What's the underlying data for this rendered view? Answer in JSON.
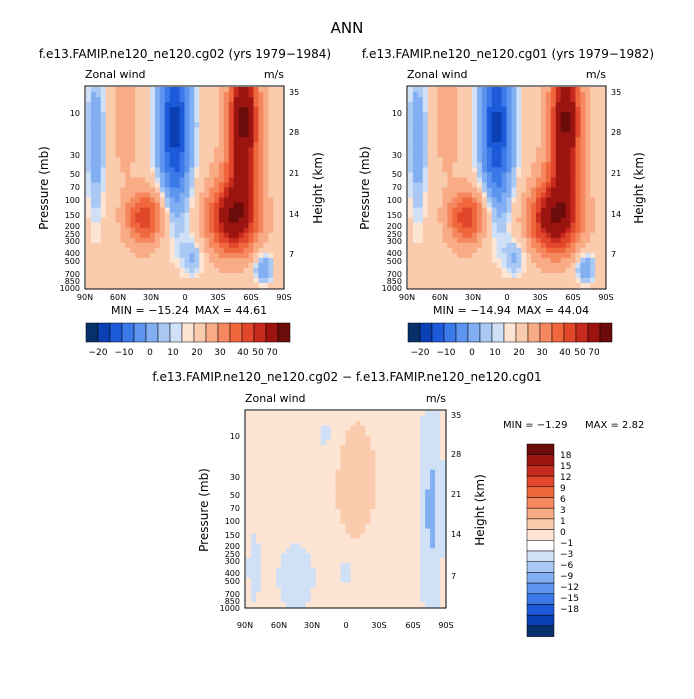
{
  "title": "ANN",
  "colors": {
    "neg": [
      "#08306b",
      "#0b3fb4",
      "#1c5ad9",
      "#3b78e8",
      "#5d94ef",
      "#82aef2",
      "#a9c8f4",
      "#cfe0f7"
    ],
    "pos": [
      "#fde4d3",
      "#fbcbad",
      "#f9ab86",
      "#f6885f",
      "#f0673d",
      "#e1472a",
      "#c52a1d",
      "#9c1410",
      "#6b0c0b"
    ],
    "zero": "#ffffff"
  },
  "chart_data": [
    {
      "type": "heatmap",
      "title": "f.e13.FAMIP.ne120_ne120.cg02 (yrs 1979−1984)",
      "left_label": "Zonal wind",
      "right_label": "m/s",
      "ylabel": "Pressure (mb)",
      "ylabel2": "Height (km)",
      "xticks": [
        "90N",
        "60N",
        "30N",
        "0",
        "30S",
        "60S",
        "90S"
      ],
      "yticks": [
        "10",
        "30",
        "50",
        "70",
        "100",
        "150",
        "200",
        "250",
        "300",
        "400",
        "500",
        "700",
        "850",
        "1000"
      ],
      "y2ticks": [
        "35",
        "28",
        "21",
        "14",
        "7"
      ],
      "min_label": "MIN = −15.24",
      "max_label": "MAX =   44.61",
      "colorbar_labels": [
        "−20",
        "−10",
        "0",
        "10",
        "20",
        "30",
        "40",
        "50",
        "70"
      ],
      "jet_nh": 22,
      "jet_sh": 30,
      "strat_west": 44.6,
      "strat_east": -15.2
    },
    {
      "type": "heatmap",
      "title": "f.e13.FAMIP.ne120_ne120.cg01 (yrs 1979−1982)",
      "left_label": "Zonal wind",
      "right_label": "m/s",
      "ylabel": "Pressure (mb)",
      "ylabel2": "Height (km)",
      "xticks": [
        "90N",
        "60N",
        "30N",
        "0",
        "30S",
        "60S",
        "90S"
      ],
      "yticks": [
        "10",
        "30",
        "50",
        "70",
        "100",
        "150",
        "200",
        "250",
        "300",
        "400",
        "500",
        "700",
        "850",
        "1000"
      ],
      "y2ticks": [
        "35",
        "28",
        "21",
        "14",
        "7"
      ],
      "min_label": "MIN = −14.94",
      "max_label": "MAX =   44.04",
      "colorbar_labels": [
        "−20",
        "−10",
        "0",
        "10",
        "20",
        "30",
        "40",
        "50",
        "70"
      ],
      "jet_nh": 22,
      "jet_sh": 31,
      "strat_west": 44.0,
      "strat_east": -14.9
    },
    {
      "type": "heatmap",
      "title": "f.e13.FAMIP.ne120_ne120.cg02 − f.e13.FAMIP.ne120_ne120.cg01",
      "left_label": "Zonal wind",
      "right_label": "m/s",
      "ylabel": "Pressure (mb)",
      "ylabel2": "Height (km)",
      "xticks": [
        "90N",
        "60N",
        "30N",
        "0",
        "30S",
        "60S",
        "90S"
      ],
      "yticks": [
        "10",
        "30",
        "50",
        "70",
        "100",
        "150",
        "200",
        "250",
        "300",
        "400",
        "500",
        "700",
        "850",
        "1000"
      ],
      "y2ticks": [
        "35",
        "28",
        "21",
        "14",
        "7"
      ],
      "min_label": "MIN =   −1.29",
      "max_label": "MAX =    2.82",
      "colorbar_labels": [
        "18",
        "15",
        "12",
        "9",
        "6",
        "3",
        "1",
        "0",
        "−1",
        "−3",
        "−6",
        "−9",
        "−12",
        "−15",
        "−18"
      ],
      "diff_min": -1.29,
      "diff_max": 2.82
    }
  ]
}
